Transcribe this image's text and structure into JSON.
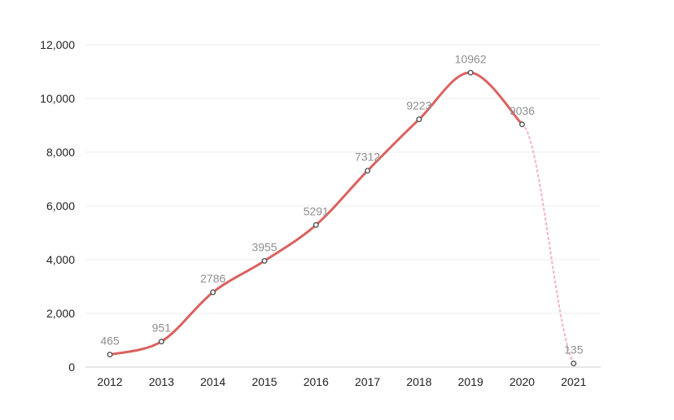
{
  "chart_data": {
    "type": "line",
    "title": "",
    "xlabel": "",
    "ylabel": "",
    "x": [
      "2012",
      "2013",
      "2014",
      "2015",
      "2016",
      "2017",
      "2018",
      "2019",
      "2020",
      "2021"
    ],
    "values": [
      465,
      951,
      2786,
      3955,
      5291,
      7312,
      9223,
      10962,
      9036,
      135
    ],
    "data_labels": [
      "465",
      "951",
      "2786",
      "3955",
      "5291",
      "7312",
      "9223",
      "10962",
      "9036",
      "135"
    ],
    "y_ticks": [
      0,
      2000,
      4000,
      6000,
      8000,
      10000,
      12000
    ],
    "y_tick_labels": [
      "0",
      "2,000",
      "4,000",
      "6,000",
      "8,000",
      "10,000",
      "12,000"
    ],
    "ylim": [
      0,
      12000
    ],
    "grid": true,
    "legend": "none",
    "colors": {
      "line": "#d9625f",
      "projected_line": "#f2b9c7",
      "marker_fill": "#ffffff",
      "marker_stroke": "#555555",
      "grid": "#ececec",
      "axis_text": "#222222",
      "label_text": "#8f8f8f"
    },
    "projected_segment": {
      "from": "2020",
      "to": "2021",
      "style": "dotted"
    }
  }
}
